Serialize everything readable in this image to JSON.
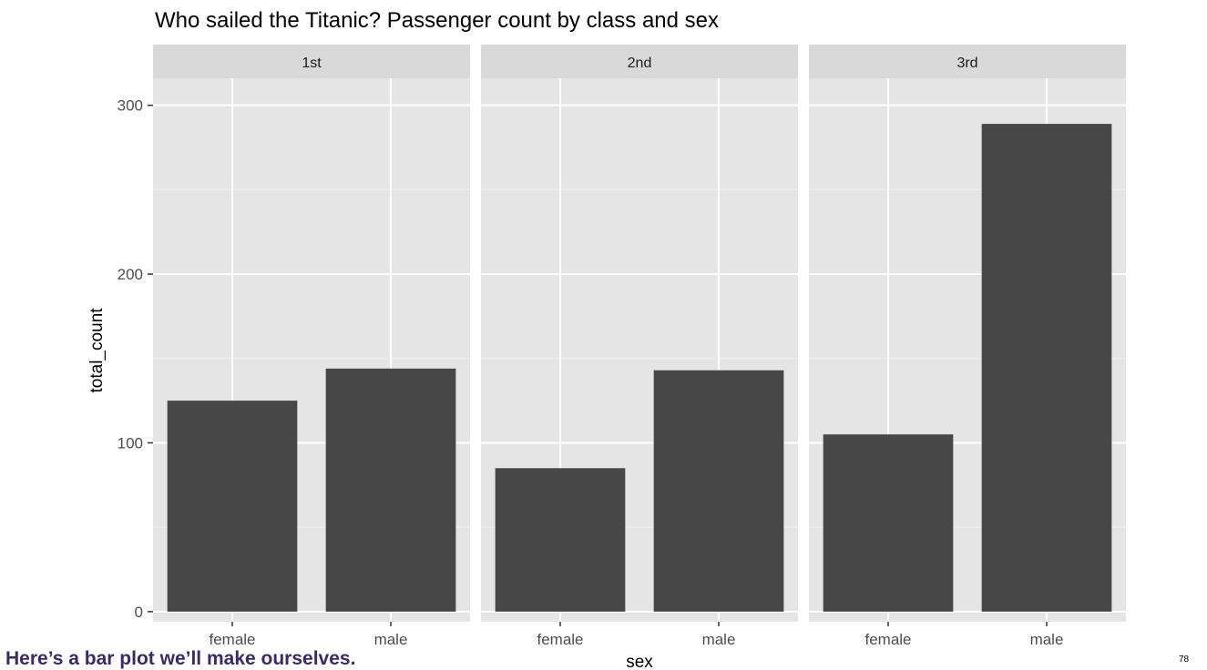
{
  "slide": {
    "caption": "Here’s a bar plot we’ll make ourselves.",
    "page_number": "78"
  },
  "chart_data": {
    "type": "bar",
    "title": "Who sailed the Titanic? Passenger count by class and sex",
    "xlabel": "sex",
    "ylabel": "total_count",
    "ylim": [
      -6,
      316
    ],
    "yticks": [
      0,
      100,
      200,
      300
    ],
    "categories": [
      "female",
      "male"
    ],
    "facets": [
      {
        "label": "1st",
        "values": [
          125,
          144
        ]
      },
      {
        "label": "2nd",
        "values": [
          85,
          143
        ]
      },
      {
        "label": "3rd",
        "values": [
          105,
          289
        ]
      }
    ],
    "grid": true,
    "colors": {
      "bar": "#474747",
      "panel": "#e5e5e5",
      "strip": "#d9d9d9",
      "grid": "#ffffff"
    }
  }
}
